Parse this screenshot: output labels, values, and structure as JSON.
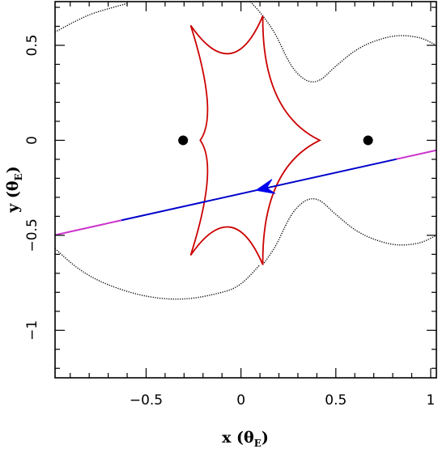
{
  "chart_data": {
    "type": "line",
    "xlabel": "x (θ",
    "xlabel_sub": "E",
    "xlabel_close": ")",
    "ylabel": "y (θ",
    "ylabel_sub": "E",
    "ylabel_close": ")",
    "xlim": [
      -0.98,
      1.03
    ],
    "ylim": [
      -1.25,
      0.73
    ],
    "x_ticks": [
      {
        "value": -0.5,
        "label": "−0.5"
      },
      {
        "value": 0,
        "label": "0"
      },
      {
        "value": 0.5,
        "label": "0.5"
      },
      {
        "value": 1,
        "label": "1"
      }
    ],
    "y_ticks": [
      {
        "value": 0.5,
        "label": "0.5"
      },
      {
        "value": 0,
        "label": "0"
      },
      {
        "value": -0.5,
        "label": "−0.5"
      },
      {
        "value": -1,
        "label": "−1"
      }
    ],
    "grid": false,
    "colors": {
      "critical_curve": "#000000",
      "caustic": "#cc0000",
      "trajectory_inner": "#0000cc",
      "trajectory_outer": "#cc33cc",
      "lens": "#000000",
      "arrow": "#0000ee"
    },
    "lenses": [
      {
        "x": -0.305,
        "y": 0.0
      },
      {
        "x": 0.67,
        "y": 0.0
      }
    ],
    "trajectory": {
      "slope": 0.222,
      "intercept": -0.281,
      "x_range": [
        -0.98,
        1.03
      ],
      "inner_x_range": [
        -0.63,
        0.82
      ],
      "arrow_at": {
        "x": 0.08,
        "y": -0.263
      },
      "direction": "left"
    },
    "caustic": {
      "cusps": [
        {
          "x": 0.415,
          "y": 0.0
        },
        {
          "x": 0.115,
          "y": 0.655
        },
        {
          "x": -0.265,
          "y": 0.605
        },
        {
          "x": -0.215,
          "y": 0.0
        },
        {
          "x": -0.265,
          "y": -0.605
        },
        {
          "x": 0.115,
          "y": -0.655
        }
      ]
    },
    "critical_curve": {
      "outer_upper": [
        [
          -0.98,
          0.57
        ],
        [
          -0.8,
          0.66
        ],
        [
          -0.6,
          0.72
        ]
      ],
      "outer_lower": [
        [
          -0.98,
          -0.57
        ],
        [
          -0.85,
          -0.68
        ],
        [
          -0.7,
          -0.76
        ],
        [
          -0.5,
          -0.82
        ],
        [
          -0.3,
          -0.835
        ],
        [
          -0.1,
          -0.8
        ],
        [
          0.0,
          -0.755
        ],
        [
          0.1,
          -0.655
        ]
      ],
      "inner_upper": [
        [
          0.05,
          0.73
        ],
        [
          0.115,
          0.655
        ],
        [
          0.18,
          0.56
        ],
        [
          0.25,
          0.42
        ],
        [
          0.3,
          0.35
        ],
        [
          0.36,
          0.31
        ],
        [
          0.42,
          0.32
        ],
        [
          0.5,
          0.39
        ],
        [
          0.6,
          0.47
        ],
        [
          0.7,
          0.52
        ],
        [
          0.82,
          0.55
        ],
        [
          0.94,
          0.54
        ],
        [
          1.03,
          0.5
        ]
      ],
      "inner_lower": [
        [
          0.115,
          -0.655
        ],
        [
          0.18,
          -0.56
        ],
        [
          0.25,
          -0.42
        ],
        [
          0.3,
          -0.35
        ],
        [
          0.36,
          -0.31
        ],
        [
          0.42,
          -0.32
        ],
        [
          0.5,
          -0.39
        ],
        [
          0.6,
          -0.47
        ],
        [
          0.7,
          -0.52
        ],
        [
          0.82,
          -0.55
        ],
        [
          0.94,
          -0.54
        ],
        [
          1.03,
          -0.5
        ]
      ]
    }
  }
}
